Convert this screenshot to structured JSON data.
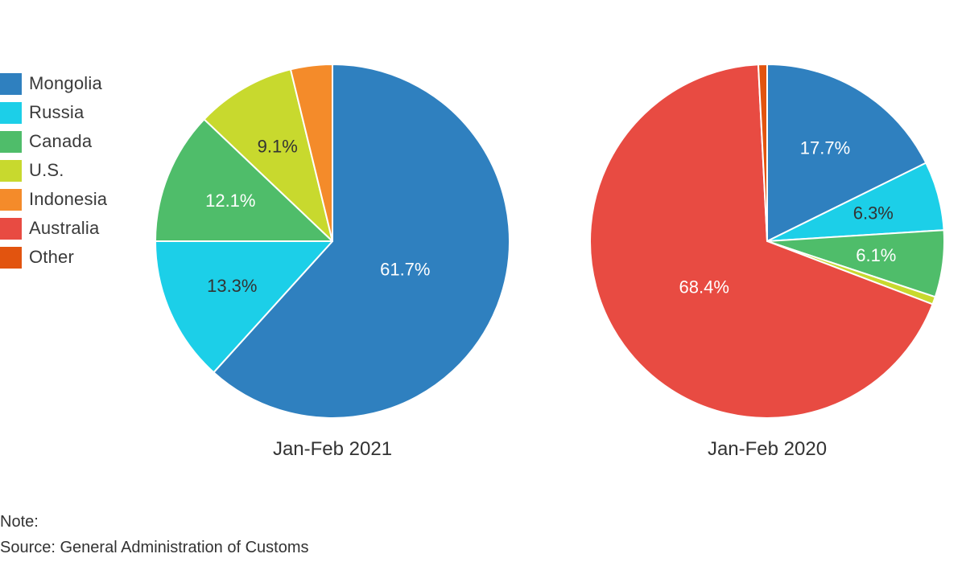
{
  "legend": [
    {
      "label": "Mongolia",
      "color": "#2f80bf"
    },
    {
      "label": "Russia",
      "color": "#1ccfe8"
    },
    {
      "label": "Canada",
      "color": "#4fbd6a"
    },
    {
      "label": "U.S.",
      "color": "#c8d92e"
    },
    {
      "label": "Indonesia",
      "color": "#f48b2a"
    },
    {
      "label": "Australia",
      "color": "#e84b42"
    },
    {
      "label": "Other",
      "color": "#e2540f"
    }
  ],
  "footer": {
    "note": "Note:",
    "source": "Source: General Administration of Customs"
  },
  "chart_data": [
    {
      "type": "pie",
      "title": "Jan-Feb 2021",
      "start_angle_deg": 0,
      "slices": [
        {
          "name": "Mongolia",
          "value": 61.7,
          "label": "61.7%",
          "color": "#2f80bf",
          "label_color": "#ffffff"
        },
        {
          "name": "Russia",
          "value": 13.3,
          "label": "13.3%",
          "color": "#1ccfe8",
          "label_color": "#333333"
        },
        {
          "name": "Canada",
          "value": 12.1,
          "label": "12.1%",
          "color": "#4fbd6a",
          "label_color": "#ffffff"
        },
        {
          "name": "U.S.",
          "value": 9.1,
          "label": "9.1%",
          "color": "#c8d92e",
          "label_color": "#333333"
        },
        {
          "name": "Indonesia",
          "value": 3.8,
          "label": "",
          "color": "#f48b2a",
          "label_color": "#333333"
        }
      ]
    },
    {
      "type": "pie",
      "title": "Jan-Feb 2020",
      "start_angle_deg": 0,
      "slices": [
        {
          "name": "Mongolia",
          "value": 17.7,
          "label": "17.7%",
          "color": "#2f80bf",
          "label_color": "#ffffff"
        },
        {
          "name": "Russia",
          "value": 6.3,
          "label": "6.3%",
          "color": "#1ccfe8",
          "label_color": "#333333"
        },
        {
          "name": "Canada",
          "value": 6.1,
          "label": "6.1%",
          "color": "#4fbd6a",
          "label_color": "#ffffff"
        },
        {
          "name": "U.S.",
          "value": 0.7,
          "label": "",
          "color": "#c8d92e",
          "label_color": "#333333"
        },
        {
          "name": "Australia",
          "value": 68.4,
          "label": "68.4%",
          "color": "#e84b42",
          "label_color": "#ffffff"
        },
        {
          "name": "Other",
          "value": 0.8,
          "label": "",
          "color": "#e2540f",
          "label_color": "#ffffff"
        }
      ]
    }
  ]
}
